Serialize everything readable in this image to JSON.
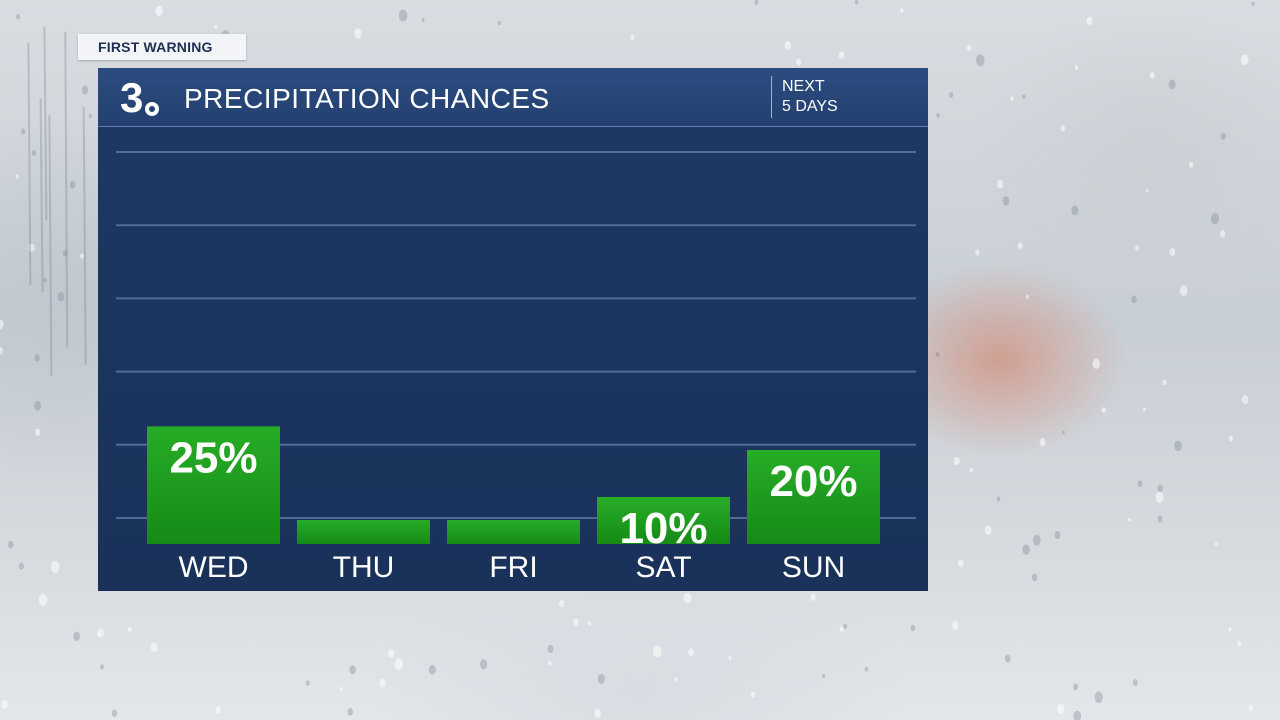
{
  "brand": {
    "tag": "FIRST WARNING",
    "logo_number": "3"
  },
  "header": {
    "title": "PRECIPITATION CHANCES",
    "subtitle_line1": "NEXT",
    "subtitle_line2": "5 DAYS"
  },
  "colors": {
    "header_bg": "#2c4c80",
    "panel_bg": "#1d3863",
    "bar_green": "#1f9a1f",
    "text": "#ffffff"
  },
  "chart_data": {
    "type": "bar",
    "title": "PRECIPITATION CHANCES",
    "categories": [
      "WED",
      "THU",
      "FRI",
      "SAT",
      "SUN"
    ],
    "values": [
      25,
      0,
      0,
      10,
      20
    ],
    "value_labels": [
      "25%",
      "",
      "",
      "10%",
      "20%"
    ],
    "ylim": [
      0,
      100
    ],
    "grid": true,
    "legend": "none"
  }
}
